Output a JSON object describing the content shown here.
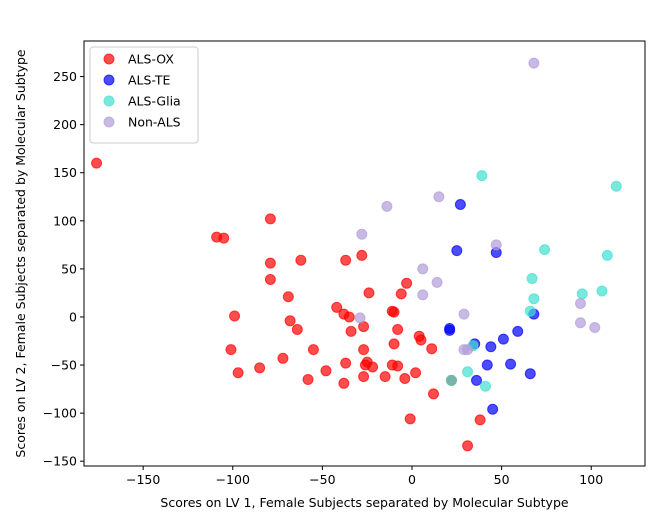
{
  "chart_data": {
    "type": "scatter",
    "title": "",
    "xlabel": "Scores on LV 1, Female Subjects separated by Molecular Subtype",
    "ylabel": "Scores on LV 2, Female Subjects separated by Molecular Subtype",
    "xlim": [
      -183,
      130
    ],
    "ylim": [
      -155,
      287
    ],
    "xticks": [
      -150,
      -100,
      -50,
      0,
      50,
      100
    ],
    "yticks": [
      -150,
      -100,
      -50,
      0,
      50,
      100,
      150,
      200,
      250
    ],
    "grid": false,
    "legend_position": "top-left",
    "series": [
      {
        "name": "ALS-OX",
        "color": "#ff0000",
        "points": [
          [
            -176,
            160
          ],
          [
            -109,
            83
          ],
          [
            -105,
            82
          ],
          [
            -79,
            102
          ],
          [
            -79,
            56
          ],
          [
            -79,
            39
          ],
          [
            -62,
            59
          ],
          [
            -69,
            21
          ],
          [
            -99,
            1
          ],
          [
            -101,
            -34
          ],
          [
            -97,
            -58
          ],
          [
            -85,
            -53
          ],
          [
            -72,
            -43
          ],
          [
            -68,
            -4
          ],
          [
            -64,
            -13
          ],
          [
            -58,
            -65
          ],
          [
            -55,
            -34
          ],
          [
            -48,
            -56
          ],
          [
            -42,
            10
          ],
          [
            -38,
            3
          ],
          [
            -37,
            59
          ],
          [
            -35,
            0
          ],
          [
            -34,
            -15
          ],
          [
            -37,
            -48
          ],
          [
            -38,
            -69
          ],
          [
            -28,
            64
          ],
          [
            -24,
            25
          ],
          [
            -27,
            -10
          ],
          [
            -27,
            -34
          ],
          [
            -26,
            -50
          ],
          [
            -25,
            -47
          ],
          [
            -22,
            -52
          ],
          [
            -27,
            -62
          ],
          [
            -15,
            -62
          ],
          [
            -11,
            6
          ],
          [
            -10,
            5
          ],
          [
            -10,
            -28
          ],
          [
            -8,
            -13
          ],
          [
            -8,
            -51
          ],
          [
            -11,
            -50
          ],
          [
            -6,
            24
          ],
          [
            -3,
            35
          ],
          [
            -4,
            -64
          ],
          [
            -1,
            -106
          ],
          [
            2,
            -58
          ],
          [
            4,
            -20
          ],
          [
            5,
            -24
          ],
          [
            11,
            -33
          ],
          [
            12,
            -80
          ],
          [
            22,
            -66
          ],
          [
            31,
            -134
          ],
          [
            38,
            -107
          ]
        ]
      },
      {
        "name": "ALS-TE",
        "color": "#0000ff",
        "points": [
          [
            27,
            117
          ],
          [
            25,
            69
          ],
          [
            47,
            67
          ],
          [
            21,
            -12
          ],
          [
            21,
            -14
          ],
          [
            35,
            -28
          ],
          [
            36,
            -66
          ],
          [
            42,
            -50
          ],
          [
            44,
            -31
          ],
          [
            45,
            -96
          ],
          [
            51,
            -23
          ],
          [
            55,
            -49
          ],
          [
            59,
            -15
          ],
          [
            66,
            -59
          ],
          [
            68,
            3
          ]
        ]
      },
      {
        "name": "ALS-Glia",
        "color": "#40e0d0",
        "points": [
          [
            39,
            147
          ],
          [
            74,
            70
          ],
          [
            67,
            40
          ],
          [
            68,
            19
          ],
          [
            66,
            6
          ],
          [
            95,
            24
          ],
          [
            106,
            27
          ],
          [
            109,
            64
          ],
          [
            114,
            136
          ],
          [
            31,
            -57
          ],
          [
            34,
            -30
          ],
          [
            41,
            -72
          ],
          [
            22,
            -66
          ]
        ]
      },
      {
        "name": "Non-ALS",
        "color": "#b19cd9",
        "points": [
          [
            68,
            264
          ],
          [
            15,
            125
          ],
          [
            -14,
            115
          ],
          [
            -28,
            86
          ],
          [
            47,
            75
          ],
          [
            6,
            50
          ],
          [
            14,
            36
          ],
          [
            6,
            23
          ],
          [
            -29,
            -1
          ],
          [
            29,
            3
          ],
          [
            29,
            -34
          ],
          [
            31,
            -34
          ],
          [
            94,
            14
          ],
          [
            94,
            -6
          ],
          [
            102,
            -11
          ]
        ]
      }
    ]
  }
}
